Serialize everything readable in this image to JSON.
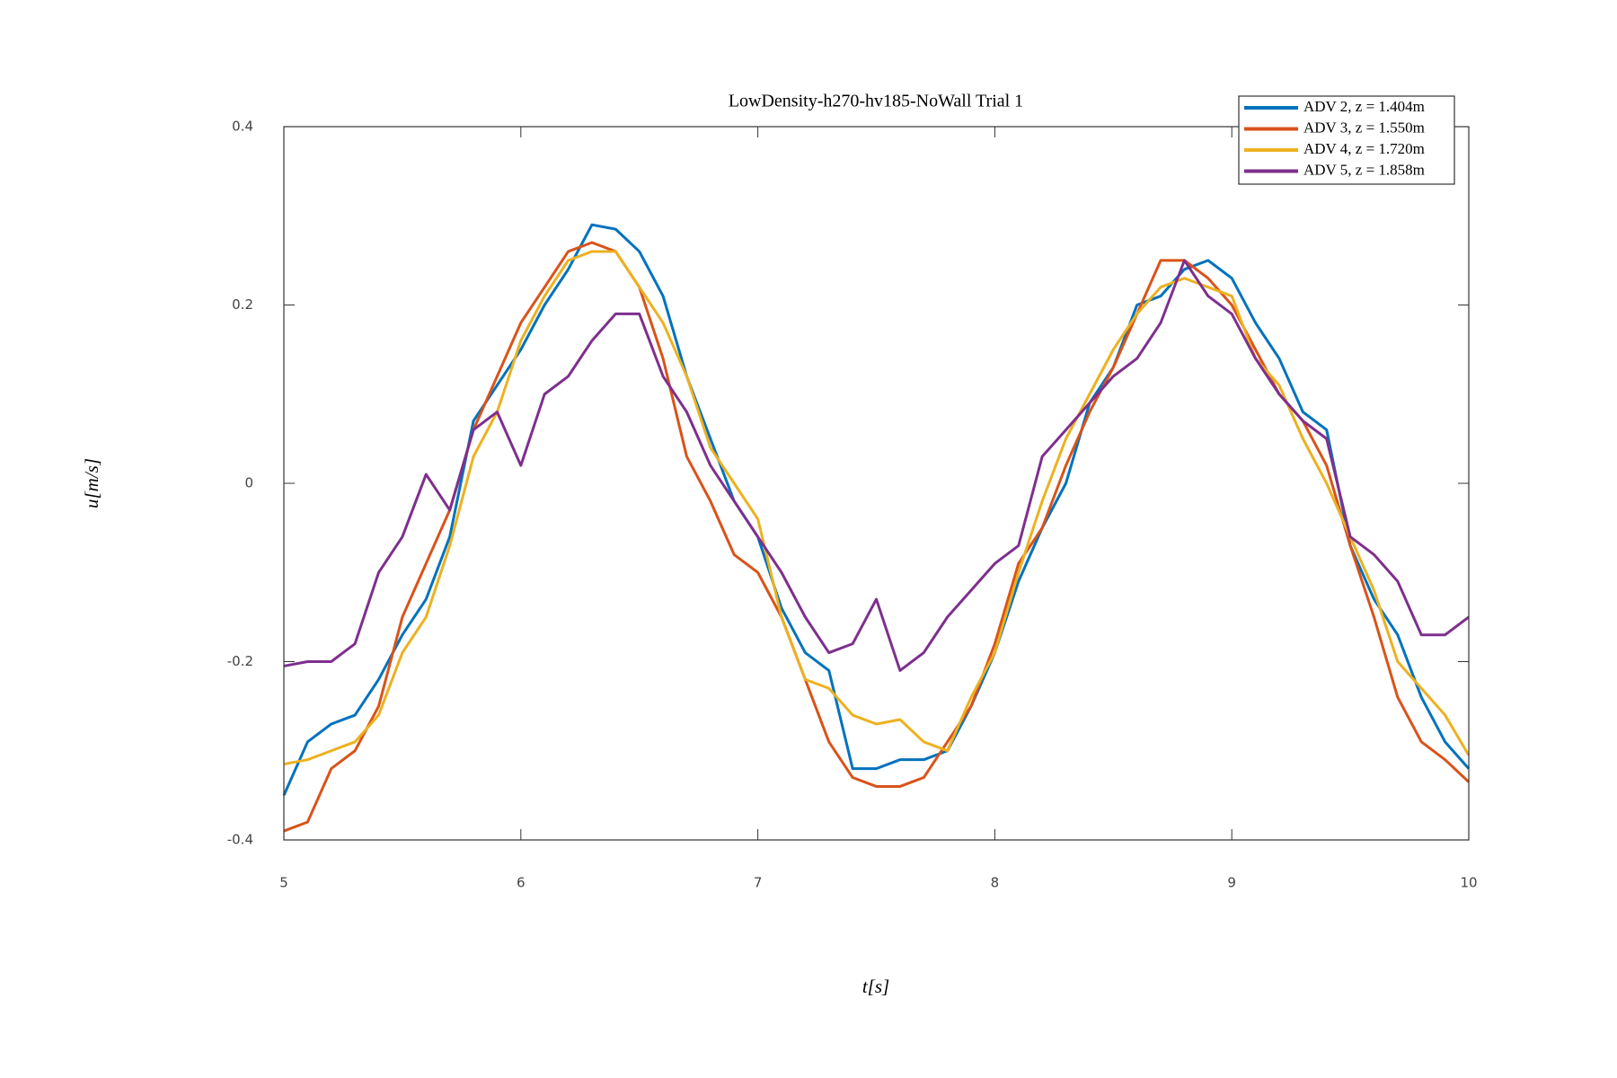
{
  "chart_data": {
    "type": "line",
    "title": "LowDensity-h270-hv185-NoWall Trial 1",
    "xlabel": "t[s]",
    "ylabel": "u[m/s]",
    "x": [
      5.0,
      5.1,
      5.2,
      5.3,
      5.4,
      5.5,
      5.6,
      5.7,
      5.8,
      5.9,
      6.0,
      6.1,
      6.2,
      6.3,
      6.4,
      6.5,
      6.6,
      6.7,
      6.8,
      6.9,
      7.0,
      7.1,
      7.2,
      7.3,
      7.4,
      7.5,
      7.6,
      7.7,
      7.8,
      7.9,
      8.0,
      8.1,
      8.2,
      8.3,
      8.4,
      8.5,
      8.6,
      8.7,
      8.8,
      8.9,
      9.0,
      9.1,
      9.2,
      9.3,
      9.4,
      9.5,
      9.6,
      9.7,
      9.8,
      9.9,
      10.0
    ],
    "series": [
      {
        "name": "ADV 2, z = 1.404m",
        "color": "#0072bd",
        "values": [
          -0.35,
          -0.29,
          -0.27,
          -0.26,
          -0.22,
          -0.17,
          -0.13,
          -0.06,
          0.07,
          0.11,
          0.15,
          0.2,
          0.24,
          0.29,
          0.285,
          0.26,
          0.21,
          0.12,
          0.05,
          -0.02,
          -0.06,
          -0.14,
          -0.19,
          -0.21,
          -0.32,
          -0.32,
          -0.31,
          -0.31,
          -0.3,
          -0.25,
          -0.19,
          -0.11,
          -0.05,
          0.0,
          0.09,
          0.13,
          0.2,
          0.21,
          0.24,
          0.25,
          0.23,
          0.18,
          0.14,
          0.08,
          0.06,
          -0.07,
          -0.13,
          -0.17,
          -0.24,
          -0.29,
          -0.32
        ]
      },
      {
        "name": "ADV 3, z = 1.550m",
        "color": "#d95319",
        "values": [
          -0.39,
          -0.38,
          -0.32,
          -0.3,
          -0.25,
          -0.15,
          -0.09,
          -0.03,
          0.06,
          0.12,
          0.18,
          0.22,
          0.26,
          0.27,
          0.26,
          0.22,
          0.14,
          0.03,
          -0.02,
          -0.08,
          -0.1,
          -0.15,
          -0.22,
          -0.29,
          -0.33,
          -0.34,
          -0.34,
          -0.33,
          -0.29,
          -0.25,
          -0.18,
          -0.09,
          -0.05,
          0.02,
          0.08,
          0.13,
          0.19,
          0.25,
          0.25,
          0.23,
          0.2,
          0.15,
          0.1,
          0.07,
          0.02,
          -0.07,
          -0.15,
          -0.24,
          -0.29,
          -0.31,
          -0.335
        ]
      },
      {
        "name": "ADV 4, z = 1.720m",
        "color": "#edb120",
        "values": [
          -0.315,
          -0.31,
          -0.3,
          -0.29,
          -0.26,
          -0.19,
          -0.15,
          -0.07,
          0.03,
          0.08,
          0.16,
          0.21,
          0.25,
          0.26,
          0.26,
          0.22,
          0.18,
          0.12,
          0.04,
          0.0,
          -0.04,
          -0.15,
          -0.22,
          -0.23,
          -0.26,
          -0.27,
          -0.265,
          -0.29,
          -0.3,
          -0.24,
          -0.19,
          -0.1,
          -0.02,
          0.05,
          0.1,
          0.15,
          0.19,
          0.22,
          0.23,
          0.22,
          0.21,
          0.14,
          0.11,
          0.05,
          0.0,
          -0.06,
          -0.12,
          -0.2,
          -0.23,
          -0.26,
          -0.305
        ]
      },
      {
        "name": "ADV 5, z = 1.858m",
        "color": "#7e2f8e",
        "values": [
          -0.205,
          -0.2,
          -0.2,
          -0.18,
          -0.1,
          -0.06,
          0.01,
          -0.03,
          0.06,
          0.08,
          0.02,
          0.1,
          0.12,
          0.16,
          0.19,
          0.19,
          0.12,
          0.08,
          0.02,
          -0.02,
          -0.06,
          -0.1,
          -0.15,
          -0.19,
          -0.18,
          -0.13,
          -0.21,
          -0.19,
          -0.15,
          -0.12,
          -0.09,
          -0.07,
          0.03,
          0.06,
          0.09,
          0.12,
          0.14,
          0.18,
          0.25,
          0.21,
          0.19,
          0.14,
          0.1,
          0.07,
          0.05,
          -0.06,
          -0.08,
          -0.11,
          -0.17,
          -0.17,
          -0.15
        ]
      }
    ],
    "xlim": [
      5,
      10
    ],
    "xticks": [
      5,
      6,
      7,
      8,
      9,
      10
    ],
    "ylim": [
      -0.4,
      0.4
    ],
    "yticks": [
      -0.4,
      -0.2,
      0,
      0.2,
      0.4
    ],
    "grid": false,
    "legend": "northeast"
  }
}
